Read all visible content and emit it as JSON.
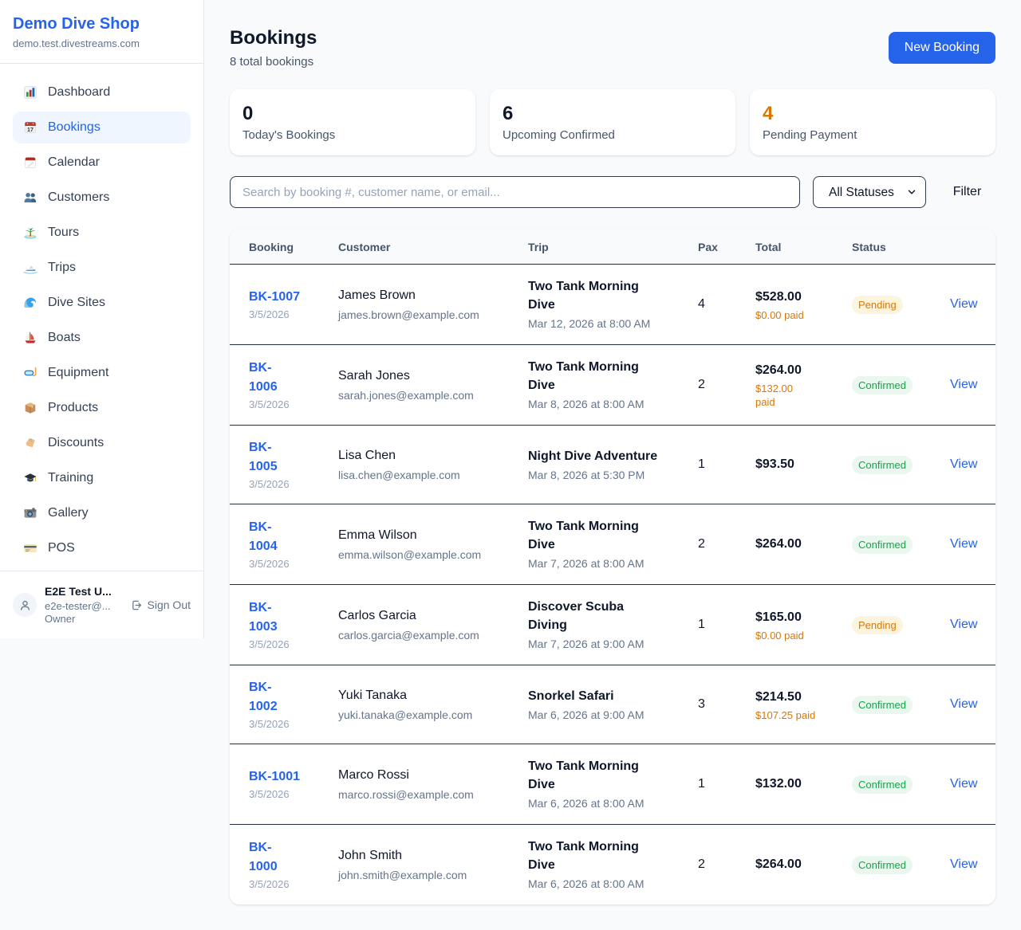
{
  "app": {
    "name": "Demo Dive Shop",
    "domain": "demo.test.divestreams.com"
  },
  "sidebar": {
    "items": [
      {
        "label": "Dashboard",
        "icon": "bar-chart-icon",
        "active": false
      },
      {
        "label": "Bookings",
        "icon": "calendar-icon",
        "active": true
      },
      {
        "label": "Calendar",
        "icon": "tearoff-calendar-icon",
        "active": false
      },
      {
        "label": "Customers",
        "icon": "people-icon",
        "active": false
      },
      {
        "label": "Tours",
        "icon": "island-icon",
        "active": false
      },
      {
        "label": "Trips",
        "icon": "speedboat-icon",
        "active": false
      },
      {
        "label": "Dive Sites",
        "icon": "wave-icon",
        "active": false
      },
      {
        "label": "Boats",
        "icon": "sailboat-icon",
        "active": false
      },
      {
        "label": "Equipment",
        "icon": "diving-mask-icon",
        "active": false
      },
      {
        "label": "Products",
        "icon": "package-icon",
        "active": false
      },
      {
        "label": "Discounts",
        "icon": "tag-icon",
        "active": false
      },
      {
        "label": "Training",
        "icon": "graduation-cap-icon",
        "active": false
      },
      {
        "label": "Gallery",
        "icon": "camera-icon",
        "active": false
      },
      {
        "label": "POS",
        "icon": "credit-card-icon",
        "active": false
      }
    ],
    "user": {
      "name": "E2E Test U...",
      "email": "e2e-tester@...",
      "role": "Owner",
      "sign_out_label": "Sign Out"
    }
  },
  "header": {
    "title": "Bookings",
    "subtitle": "8 total bookings",
    "new_booking_label": "New Booking"
  },
  "stats": [
    {
      "value": "0",
      "label": "Today's Bookings",
      "color": "#0f172a"
    },
    {
      "value": "6",
      "label": "Upcoming Confirmed",
      "color": "#0f172a"
    },
    {
      "value": "4",
      "label": "Pending Payment",
      "color": "#d97706"
    }
  ],
  "filters": {
    "search_placeholder": "Search by booking #, customer name, or email...",
    "status_selected": "All Statuses",
    "filter_label": "Filter"
  },
  "table": {
    "columns": [
      "Booking",
      "Customer",
      "Trip",
      "Pax",
      "Total",
      "Status"
    ],
    "view_label": "View",
    "rows": [
      {
        "id": "BK-1007",
        "date": "3/5/2026",
        "customer": "James Brown",
        "email": "james.brown@example.com",
        "trip": "Two Tank Morning\nDive",
        "trip_time": "Mar 12, 2026 at 8:00 AM",
        "pax": "4",
        "total": "$528.00",
        "paid": "$0.00 paid",
        "status": "Pending"
      },
      {
        "id": "BK-\n1006",
        "date": "3/5/2026",
        "customer": "Sarah Jones",
        "email": "sarah.jones@example.com",
        "trip": "Two Tank Morning\nDive",
        "trip_time": "Mar 8, 2026 at 8:00 AM",
        "pax": "2",
        "total": "$264.00",
        "paid": "$132.00\npaid",
        "status": "Confirmed"
      },
      {
        "id": "BK-\n1005",
        "date": "3/5/2026",
        "customer": "Lisa Chen",
        "email": "lisa.chen@example.com",
        "trip": "Night Dive Adventure",
        "trip_time": "Mar 8, 2026 at 5:30 PM",
        "pax": "1",
        "total": "$93.50",
        "paid": "",
        "status": "Confirmed"
      },
      {
        "id": "BK-\n1004",
        "date": "3/5/2026",
        "customer": "Emma Wilson",
        "email": "emma.wilson@example.com",
        "trip": "Two Tank Morning\nDive",
        "trip_time": "Mar 7, 2026 at 8:00 AM",
        "pax": "2",
        "total": "$264.00",
        "paid": "",
        "status": "Confirmed"
      },
      {
        "id": "BK-\n1003",
        "date": "3/5/2026",
        "customer": "Carlos Garcia",
        "email": "carlos.garcia@example.com",
        "trip": "Discover Scuba\nDiving",
        "trip_time": "Mar 7, 2026 at 9:00 AM",
        "pax": "1",
        "total": "$165.00",
        "paid": "$0.00 paid",
        "status": "Pending"
      },
      {
        "id": "BK-\n1002",
        "date": "3/5/2026",
        "customer": "Yuki Tanaka",
        "email": "yuki.tanaka@example.com",
        "trip": "Snorkel Safari",
        "trip_time": "Mar 6, 2026 at 9:00 AM",
        "pax": "3",
        "total": "$214.50",
        "paid": "$107.25 paid",
        "status": "Confirmed"
      },
      {
        "id": "BK-1001",
        "date": "3/5/2026",
        "customer": "Marco Rossi",
        "email": "marco.rossi@example.com",
        "trip": "Two Tank Morning\nDive",
        "trip_time": "Mar 6, 2026 at 8:00 AM",
        "pax": "1",
        "total": "$132.00",
        "paid": "",
        "status": "Confirmed"
      },
      {
        "id": "BK-\n1000",
        "date": "3/5/2026",
        "customer": "John Smith",
        "email": "john.smith@example.com",
        "trip": "Two Tank Morning\nDive",
        "trip_time": "Mar 6, 2026 at 8:00 AM",
        "pax": "2",
        "total": "$264.00",
        "paid": "",
        "status": "Confirmed"
      }
    ]
  },
  "colors": {
    "accent": "#2563eb",
    "pending": "#d97706",
    "confirmed": "#16a34a",
    "page_background": "#f8fafc"
  }
}
